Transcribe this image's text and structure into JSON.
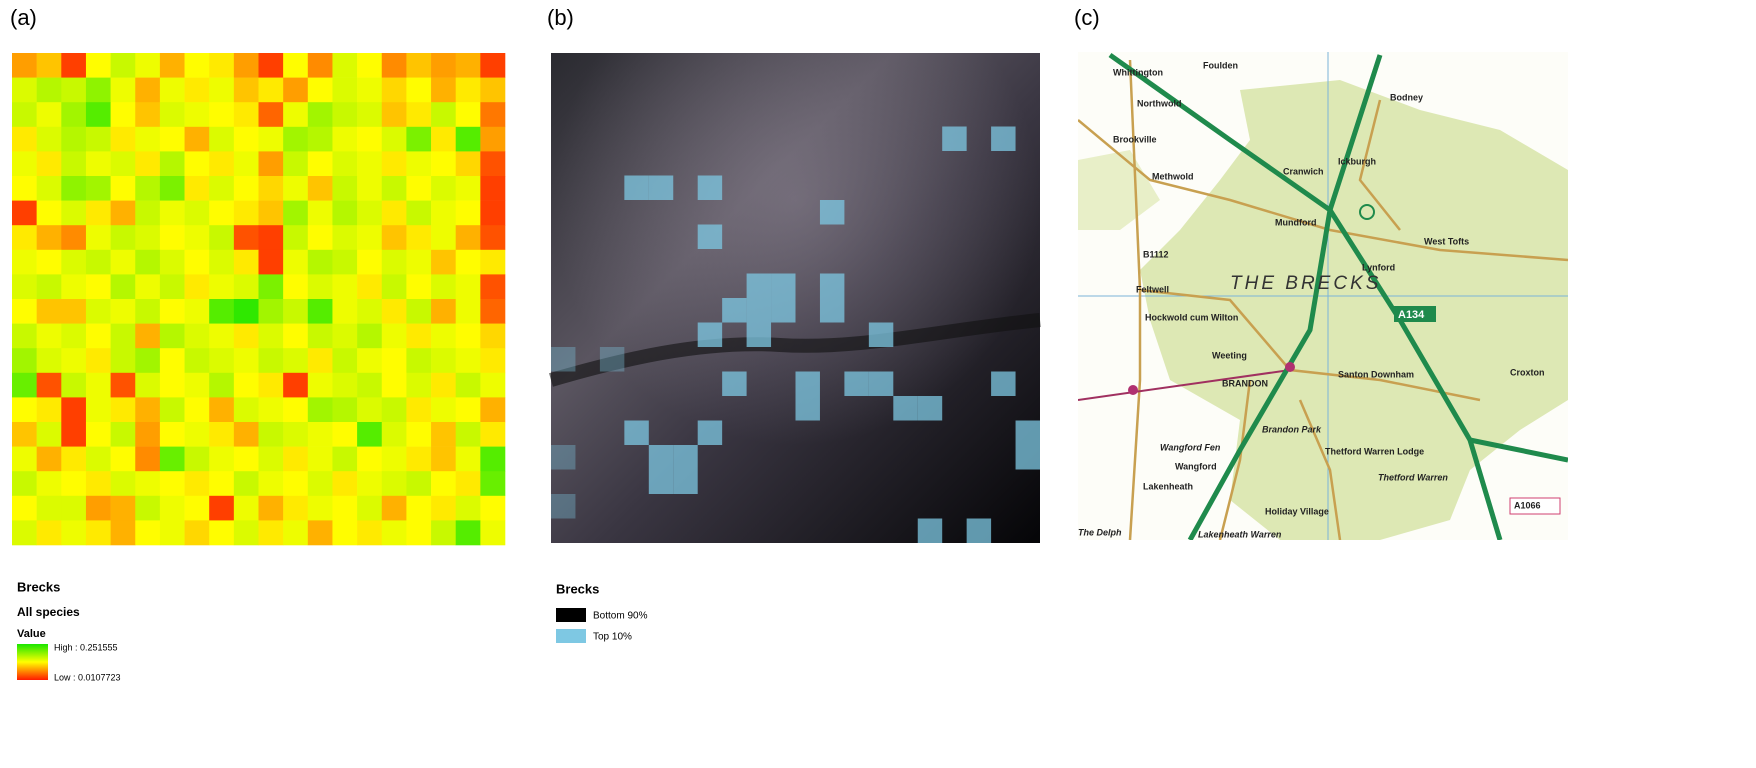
{
  "panel_a": {
    "label": "(a)",
    "heatmap": {
      "values": [
        [
          0.08,
          0.1,
          0.03,
          0.13,
          0.16,
          0.14,
          0.09,
          0.13,
          0.12,
          0.08,
          0.03,
          0.13,
          0.07,
          0.15,
          0.13,
          0.07,
          0.1,
          0.08,
          0.09,
          0.03
        ],
        [
          0.15,
          0.17,
          0.16,
          0.19,
          0.14,
          0.09,
          0.14,
          0.12,
          0.14,
          0.1,
          0.12,
          0.08,
          0.13,
          0.15,
          0.14,
          0.11,
          0.13,
          0.09,
          0.12,
          0.1
        ],
        [
          0.16,
          0.14,
          0.18,
          0.22,
          0.13,
          0.1,
          0.15,
          0.14,
          0.13,
          0.12,
          0.05,
          0.14,
          0.18,
          0.16,
          0.15,
          0.1,
          0.12,
          0.16,
          0.13,
          0.06
        ],
        [
          0.12,
          0.15,
          0.17,
          0.16,
          0.12,
          0.14,
          0.13,
          0.09,
          0.15,
          0.13,
          0.14,
          0.18,
          0.17,
          0.14,
          0.13,
          0.15,
          0.2,
          0.12,
          0.22,
          0.08
        ],
        [
          0.14,
          0.12,
          0.16,
          0.14,
          0.15,
          0.12,
          0.17,
          0.13,
          0.12,
          0.14,
          0.08,
          0.16,
          0.13,
          0.15,
          0.14,
          0.12,
          0.14,
          0.13,
          0.11,
          0.04
        ],
        [
          0.13,
          0.15,
          0.19,
          0.18,
          0.13,
          0.17,
          0.2,
          0.12,
          0.15,
          0.13,
          0.11,
          0.14,
          0.1,
          0.16,
          0.14,
          0.16,
          0.13,
          0.15,
          0.14,
          0.03
        ],
        [
          0.03,
          0.13,
          0.15,
          0.12,
          0.09,
          0.16,
          0.14,
          0.15,
          0.13,
          0.12,
          0.1,
          0.18,
          0.14,
          0.17,
          0.15,
          0.12,
          0.16,
          0.14,
          0.13,
          0.03
        ],
        [
          0.12,
          0.09,
          0.07,
          0.14,
          0.16,
          0.15,
          0.13,
          0.14,
          0.16,
          0.04,
          0.03,
          0.16,
          0.13,
          0.15,
          0.14,
          0.1,
          0.12,
          0.14,
          0.09,
          0.04
        ],
        [
          0.14,
          0.13,
          0.15,
          0.16,
          0.14,
          0.17,
          0.15,
          0.13,
          0.15,
          0.12,
          0.03,
          0.14,
          0.17,
          0.16,
          0.13,
          0.15,
          0.14,
          0.1,
          0.13,
          0.12
        ],
        [
          0.15,
          0.16,
          0.14,
          0.13,
          0.17,
          0.14,
          0.16,
          0.12,
          0.14,
          0.15,
          0.2,
          0.13,
          0.15,
          0.14,
          0.12,
          0.16,
          0.13,
          0.15,
          0.14,
          0.04
        ],
        [
          0.13,
          0.1,
          0.1,
          0.15,
          0.14,
          0.16,
          0.13,
          0.14,
          0.22,
          0.24,
          0.18,
          0.16,
          0.22,
          0.14,
          0.15,
          0.12,
          0.16,
          0.09,
          0.14,
          0.05
        ],
        [
          0.16,
          0.14,
          0.15,
          0.13,
          0.16,
          0.09,
          0.17,
          0.15,
          0.14,
          0.12,
          0.15,
          0.13,
          0.16,
          0.15,
          0.17,
          0.14,
          0.12,
          0.14,
          0.13,
          0.11
        ],
        [
          0.18,
          0.15,
          0.14,
          0.12,
          0.16,
          0.18,
          0.13,
          0.16,
          0.15,
          0.14,
          0.16,
          0.15,
          0.12,
          0.16,
          0.14,
          0.13,
          0.16,
          0.15,
          0.14,
          0.12
        ],
        [
          0.21,
          0.04,
          0.16,
          0.14,
          0.04,
          0.15,
          0.13,
          0.14,
          0.17,
          0.13,
          0.12,
          0.03,
          0.14,
          0.15,
          0.16,
          0.13,
          0.15,
          0.12,
          0.16,
          0.14
        ],
        [
          0.13,
          0.12,
          0.03,
          0.14,
          0.12,
          0.09,
          0.16,
          0.13,
          0.09,
          0.15,
          0.14,
          0.13,
          0.18,
          0.17,
          0.15,
          0.16,
          0.12,
          0.14,
          0.13,
          0.09
        ],
        [
          0.1,
          0.15,
          0.03,
          0.13,
          0.16,
          0.08,
          0.13,
          0.14,
          0.12,
          0.09,
          0.16,
          0.15,
          0.14,
          0.13,
          0.22,
          0.15,
          0.13,
          0.1,
          0.16,
          0.12
        ],
        [
          0.14,
          0.09,
          0.12,
          0.15,
          0.13,
          0.07,
          0.21,
          0.16,
          0.14,
          0.13,
          0.15,
          0.12,
          0.14,
          0.16,
          0.13,
          0.14,
          0.12,
          0.1,
          0.14,
          0.22
        ],
        [
          0.16,
          0.14,
          0.13,
          0.12,
          0.15,
          0.14,
          0.13,
          0.12,
          0.13,
          0.16,
          0.14,
          0.13,
          0.15,
          0.12,
          0.14,
          0.15,
          0.16,
          0.13,
          0.12,
          0.21
        ],
        [
          0.13,
          0.15,
          0.15,
          0.08,
          0.09,
          0.16,
          0.14,
          0.13,
          0.03,
          0.14,
          0.09,
          0.12,
          0.14,
          0.13,
          0.15,
          0.09,
          0.13,
          0.12,
          0.15,
          0.13
        ],
        [
          0.15,
          0.12,
          0.14,
          0.12,
          0.09,
          0.13,
          0.14,
          0.11,
          0.13,
          0.15,
          0.12,
          0.14,
          0.09,
          0.13,
          0.12,
          0.14,
          0.13,
          0.16,
          0.22,
          0.14
        ]
      ]
    },
    "legend": {
      "title": "Brecks",
      "subtitle": "All species",
      "field": "Value",
      "high": {
        "value": 0.251555,
        "label": "High : 0.251555"
      },
      "low": {
        "value": 0.0107723,
        "label": "Low : 0.0107723"
      },
      "colors": [
        "#ff1a00",
        "#ffff00",
        "#19e600"
      ]
    }
  },
  "panel_b": {
    "label": "(b)",
    "top_cells": [
      [
        16,
        3
      ],
      [
        18,
        3
      ],
      [
        3,
        5
      ],
      [
        4,
        5
      ],
      [
        6,
        5
      ],
      [
        11,
        6
      ],
      [
        6,
        7
      ],
      [
        8,
        9
      ],
      [
        9,
        9
      ],
      [
        8,
        10
      ],
      [
        9,
        10
      ],
      [
        11,
        9
      ],
      [
        11,
        10
      ],
      [
        7,
        10
      ],
      [
        6,
        11
      ],
      [
        8,
        11
      ],
      [
        13,
        11
      ],
      [
        0,
        12
      ],
      [
        2,
        12
      ],
      [
        7,
        13
      ],
      [
        10,
        13
      ],
      [
        10,
        14
      ],
      [
        12,
        13
      ],
      [
        13,
        13
      ],
      [
        18,
        13
      ],
      [
        14,
        14
      ],
      [
        15,
        14
      ],
      [
        3,
        15
      ],
      [
        6,
        15
      ],
      [
        0,
        16
      ],
      [
        4,
        16
      ],
      [
        5,
        16
      ],
      [
        4,
        17
      ],
      [
        5,
        17
      ],
      [
        19,
        15
      ],
      [
        19,
        16
      ],
      [
        0,
        18
      ],
      [
        15,
        19
      ],
      [
        17,
        19
      ]
    ],
    "legend": {
      "title": "Brecks",
      "items": [
        {
          "label": "Bottom 90%",
          "color": "#000000"
        },
        {
          "label": "Top 10%",
          "color": "#7ec8e3"
        }
      ]
    }
  },
  "panel_c": {
    "label": "(c)",
    "map_labels": [
      "Whittington",
      "Foulden",
      "Northwold",
      "Bodney",
      "Brookville",
      "Ickburgh",
      "Cranwich",
      "Methwold",
      "Mundford",
      "West Tofts",
      "B1112",
      "Lynford",
      "THE BRECKS",
      "Feltwell",
      "A134",
      "Hockwold cum Wilton",
      "Weeting",
      "BRANDON",
      "Santon Downham",
      "Brandon Park",
      "Thetford Warren Lodge",
      "Thetford Warren",
      "Wangford Fen",
      "Wangford",
      "Lakenheath",
      "Holiday Village",
      "The Delph",
      "Lakenheath Warren",
      "Croxton",
      "A1066"
    ]
  }
}
